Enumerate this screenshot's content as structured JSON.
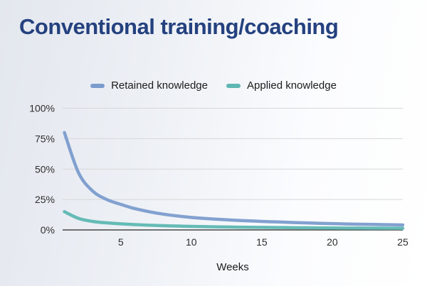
{
  "title": "Conventional training/coaching",
  "chart_data": {
    "type": "line",
    "title": "Conventional training/coaching",
    "xlabel": "Weeks",
    "ylabel": "",
    "x": [
      1,
      2,
      3,
      4,
      5,
      6,
      7,
      8,
      9,
      10,
      11,
      12,
      13,
      14,
      15,
      16,
      17,
      18,
      19,
      20,
      21,
      22,
      23,
      24,
      25
    ],
    "xlim": [
      1,
      25
    ],
    "ylim": [
      0,
      100
    ],
    "x_ticks": [
      5,
      10,
      15,
      20,
      25
    ],
    "y_ticks": [
      0,
      25,
      50,
      75,
      100
    ],
    "y_tick_labels": [
      "0%",
      "25%",
      "50%",
      "75%",
      "100%"
    ],
    "grid": true,
    "legend_position": "top-center",
    "series": [
      {
        "name": "Retained knowledge",
        "color": "#7b9ccd",
        "values": [
          80,
          47,
          32,
          25,
          21,
          17.5,
          15,
          13,
          11.5,
          10.3,
          9.4,
          8.7,
          8,
          7.5,
          7,
          6.6,
          6.2,
          5.8,
          5.5,
          5.2,
          4.9,
          4.7,
          4.5,
          4.3,
          4.1
        ]
      },
      {
        "name": "Applied knowledge",
        "color": "#5eb7b2",
        "values": [
          15,
          9.5,
          7,
          5.8,
          5,
          4.4,
          3.9,
          3.5,
          3.2,
          2.9,
          2.7,
          2.5,
          2.35,
          2.2,
          2.1,
          2,
          1.9,
          1.8,
          1.7,
          1.6,
          1.55,
          1.5,
          1.45,
          1.4,
          1.35
        ]
      }
    ]
  },
  "colors": {
    "title": "#24417f",
    "gridline": "#d7d7d7",
    "axis_line": "#474747",
    "tick_text": "#2d2d2d"
  }
}
